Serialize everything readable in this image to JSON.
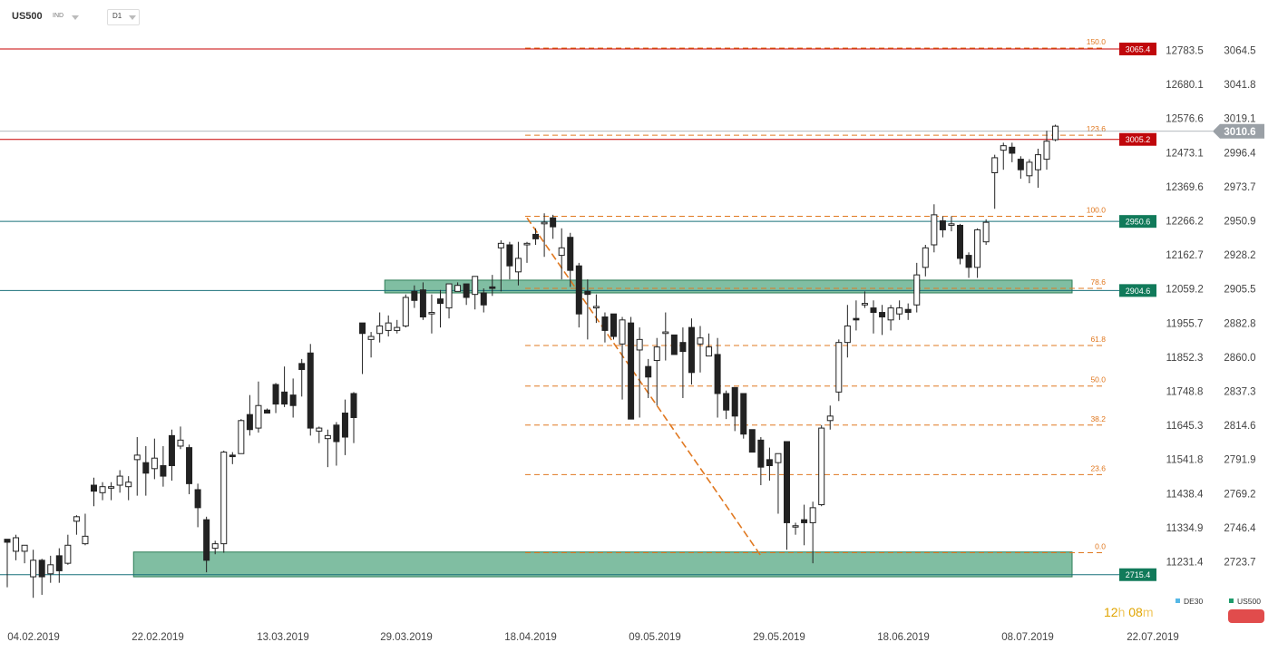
{
  "header": {
    "symbol": "US500",
    "symbol_tag": "IND",
    "timeframe": "D1"
  },
  "countdown": {
    "hours": "12",
    "h": "h",
    "minutes": "08",
    "m": "m"
  },
  "legend": [
    {
      "label": "DE30",
      "color": "#56b8e6"
    },
    {
      "label": "US500",
      "color": "#1e9c6c"
    }
  ],
  "colors": {
    "bull_fill": "#ffffff",
    "bear_fill": "#222222",
    "zone": "#4aa37a",
    "red_line": "#c80000",
    "teal_line": "#19707a",
    "fib": "#e07820",
    "current_label": "#9aa0a6"
  },
  "chart_data": {
    "type": "candlestick",
    "primary_axis_ticks": [
      "3064.5",
      "3041.8",
      "3019.1",
      "2996.4",
      "2973.7",
      "2950.9",
      "2928.2",
      "2905.5",
      "2882.8",
      "2860.0",
      "2837.3",
      "2814.6",
      "2791.9",
      "2769.2",
      "2746.4",
      "2723.7"
    ],
    "secondary_axis_ticks": [
      "12783.5",
      "12680.1",
      "12576.6",
      "12473.1",
      "12369.6",
      "12266.2",
      "12162.7",
      "12059.2",
      "11955.7",
      "11852.3",
      "11748.8",
      "11645.3",
      "11541.8",
      "11438.4",
      "11334.9",
      "11231.4"
    ],
    "x_ticks": [
      "04.02.2019",
      "22.02.2019",
      "13.03.2019",
      "29.03.2019",
      "18.04.2019",
      "09.05.2019",
      "29.05.2019",
      "18.06.2019",
      "08.07.2019",
      "22.07.2019"
    ],
    "levels": [
      {
        "value": 3065.4,
        "label": "3065.4",
        "kind": "red"
      },
      {
        "value": 3005.2,
        "label": "3005.2",
        "kind": "red"
      },
      {
        "value": 2950.6,
        "label": "2950.6",
        "kind": "teal"
      },
      {
        "value": 2904.6,
        "label": "2904.6",
        "kind": "teal"
      },
      {
        "value": 2715.4,
        "label": "2715.4",
        "kind": "teal"
      }
    ],
    "current_price": {
      "value": 3010.6,
      "label": "3010.6"
    },
    "fibonacci": [
      {
        "ratio": "150.0",
        "value": 3066.0
      },
      {
        "ratio": "123.6",
        "value": 3008.0
      },
      {
        "ratio": "100.0",
        "value": 2954.0
      },
      {
        "ratio": "78.6",
        "value": 2906.0
      },
      {
        "ratio": "61.8",
        "value": 2868.0
      },
      {
        "ratio": "50.0",
        "value": 2841.0
      },
      {
        "ratio": "38.2",
        "value": 2815.0
      },
      {
        "ratio": "23.6",
        "value": 2782.0
      },
      {
        "ratio": "0.0",
        "value": 2730.0
      }
    ],
    "zones": [
      {
        "from": 2903.0,
        "to": 2911.5,
        "start_index": 44
      },
      {
        "from": 2714.0,
        "to": 2730.5,
        "start_index": 15
      }
    ],
    "trendline": {
      "from": [
        60,
        2953.0
      ],
      "to": [
        87,
        2728.0
      ]
    },
    "fib_start_index": 60,
    "candles": [
      [
        2739,
        2737,
        2725,
        2707
      ],
      [
        2731,
        2740,
        2742,
        2725
      ],
      [
        2731,
        2735,
        2730,
        2723
      ],
      [
        2714,
        2725,
        2732,
        2700
      ],
      [
        2725,
        2714,
        2726,
        2702
      ],
      [
        2716,
        2722,
        2728,
        2710
      ],
      [
        2728,
        2718,
        2733,
        2710
      ],
      [
        2723,
        2735,
        2742,
        2722
      ],
      [
        2751,
        2754,
        2755,
        2742
      ],
      [
        2736,
        2741,
        2756,
        2735
      ],
      [
        2775,
        2771,
        2780,
        2761
      ],
      [
        2770,
        2774,
        2777,
        2765
      ],
      [
        2773,
        2774,
        2777,
        2765
      ],
      [
        2775,
        2781,
        2785,
        2770
      ],
      [
        2774,
        2777,
        2781,
        2765
      ],
      [
        2792,
        2795,
        2807,
        2768
      ],
      [
        2790,
        2783,
        2801,
        2768
      ],
      [
        2786,
        2793,
        2806,
        2779
      ],
      [
        2788,
        2781,
        2801,
        2774
      ],
      [
        2808,
        2788,
        2812,
        2778
      ],
      [
        2801,
        2805,
        2814,
        2799
      ],
      [
        2800,
        2776,
        2802,
        2769
      ],
      [
        2772,
        2760,
        2776,
        2747
      ],
      [
        2752,
        2725,
        2754,
        2717
      ],
      [
        2733,
        2736,
        2738,
        2729
      ],
      [
        2736,
        2797,
        2798,
        2730
      ],
      [
        2795,
        2794,
        2797,
        2789
      ],
      [
        2796,
        2818,
        2819,
        2797
      ],
      [
        2822,
        2812,
        2835,
        2808
      ],
      [
        2813,
        2828,
        2844,
        2810
      ],
      [
        2825,
        2823,
        2826,
        2824
      ],
      [
        2842,
        2829,
        2843,
        2823
      ],
      [
        2837,
        2829,
        2854,
        2827
      ],
      [
        2835,
        2828,
        2846,
        2820
      ],
      [
        2856,
        2852,
        2859,
        2834
      ],
      [
        2863,
        2813,
        2869,
        2808
      ],
      [
        2811,
        2813,
        2814,
        2803
      ],
      [
        2806,
        2808,
        2812,
        2787
      ],
      [
        2815,
        2804,
        2817,
        2788
      ],
      [
        2823,
        2807,
        2832,
        2795
      ],
      [
        2836,
        2820,
        2837,
        2803
      ],
      [
        2883,
        2876,
        2883,
        2849
      ],
      [
        2872,
        2874,
        2877,
        2860
      ],
      [
        2876,
        2881,
        2890,
        2870
      ],
      [
        2878,
        2883,
        2888,
        2874
      ],
      [
        2878,
        2880,
        2885,
        2876
      ],
      [
        2881,
        2900,
        2902,
        2880
      ],
      [
        2904,
        2898,
        2908,
        2893
      ],
      [
        2905,
        2887,
        2910,
        2885
      ],
      [
        2889,
        2890,
        2902,
        2876
      ],
      [
        2899,
        2896,
        2905,
        2880
      ],
      [
        2893,
        2909,
        2909,
        2886
      ],
      [
        2904,
        2908,
        2910,
        2904
      ],
      [
        2909,
        2900,
        2909,
        2895
      ],
      [
        2902,
        2914,
        2914,
        2892
      ],
      [
        2903,
        2895,
        2906,
        2890
      ],
      [
        2907,
        2906,
        2915,
        2901
      ],
      [
        2933,
        2936,
        2938,
        2904
      ],
      [
        2935,
        2921,
        2937,
        2912
      ],
      [
        2917,
        2926,
        2937,
        2908
      ],
      [
        2935,
        2936,
        2937,
        2923
      ],
      [
        2942,
        2939,
        2946,
        2935
      ],
      [
        2949,
        2950,
        2956,
        2927
      ],
      [
        2953,
        2947,
        2955,
        2939
      ],
      [
        2928,
        2933,
        2946,
        2912
      ],
      [
        2940,
        2918,
        2943,
        2907
      ],
      [
        2921,
        2889,
        2923,
        2880
      ],
      [
        2904,
        2902,
        2912,
        2872
      ],
      [
        2893,
        2894,
        2902,
        2883
      ],
      [
        2887,
        2878,
        2890,
        2870
      ],
      [
        2889,
        2874,
        2885,
        2872
      ],
      [
        2869,
        2885,
        2887,
        2832
      ],
      [
        2883,
        2819,
        2887,
        2823
      ],
      [
        2865,
        2872,
        2880,
        2820
      ],
      [
        2854,
        2847,
        2859,
        2833
      ],
      [
        2858,
        2867,
        2873,
        2828
      ],
      [
        2876,
        2877,
        2890,
        2858
      ],
      [
        2875,
        2862,
        2873,
        2863
      ],
      [
        2870,
        2864,
        2880,
        2833
      ],
      [
        2880,
        2850,
        2886,
        2842
      ],
      [
        2869,
        2873,
        2881,
        2850
      ],
      [
        2861,
        2867,
        2876,
        2863
      ],
      [
        2862,
        2836,
        2873,
        2820
      ],
      [
        2836,
        2825,
        2838,
        2819
      ],
      [
        2840,
        2821,
        2840,
        2811
      ],
      [
        2836,
        2809,
        2836,
        2806
      ],
      [
        2812,
        2797,
        2810,
        2797
      ],
      [
        2805,
        2787,
        2807,
        2775
      ],
      [
        2792,
        2788,
        2800,
        2778
      ],
      [
        2790,
        2796,
        2790,
        2756
      ],
      [
        2804,
        2750,
        2804,
        2732
      ],
      [
        2748,
        2748,
        2750,
        2742
      ],
      [
        2752,
        2750,
        2762,
        2735
      ],
      [
        2750,
        2760,
        2764,
        2723
      ],
      [
        2762,
        2813,
        2815,
        2761
      ],
      [
        2818,
        2821,
        2828,
        2812
      ],
      [
        2837,
        2870,
        2872,
        2831
      ],
      [
        2870,
        2881,
        2895,
        2860
      ],
      [
        2886,
        2885,
        2898,
        2878
      ],
      [
        2895,
        2896,
        2904,
        2893
      ],
      [
        2893,
        2890,
        2898,
        2876
      ],
      [
        2890,
        2887,
        2895,
        2875
      ],
      [
        2885,
        2893,
        2895,
        2878
      ],
      [
        2889,
        2893,
        2898,
        2885
      ],
      [
        2892,
        2890,
        2896,
        2885
      ],
      [
        2895,
        2915,
        2923,
        2890
      ],
      [
        2920,
        2933,
        2935,
        2914
      ],
      [
        2935,
        2955,
        2962,
        2930
      ],
      [
        2951,
        2945,
        2954,
        2940
      ],
      [
        2948,
        2949,
        2954,
        2944
      ],
      [
        2948,
        2926,
        2949,
        2922
      ],
      [
        2928,
        2920,
        2930,
        2913
      ],
      [
        2920,
        2945,
        2946,
        2913
      ],
      [
        2937,
        2950,
        2952,
        2935
      ],
      [
        2983,
        2993,
        2995,
        2959
      ],
      [
        2998,
        3001,
        3003,
        2985
      ],
      [
        3000,
        2996,
        3003,
        2990
      ],
      [
        2992,
        2985,
        2994,
        2979
      ],
      [
        2981,
        2990,
        2992,
        2976
      ],
      [
        2985,
        2995,
        2999,
        2973
      ],
      [
        2992,
        3004,
        3011,
        2985
      ],
      [
        3005,
        3014,
        3015,
        3004
      ]
    ]
  }
}
